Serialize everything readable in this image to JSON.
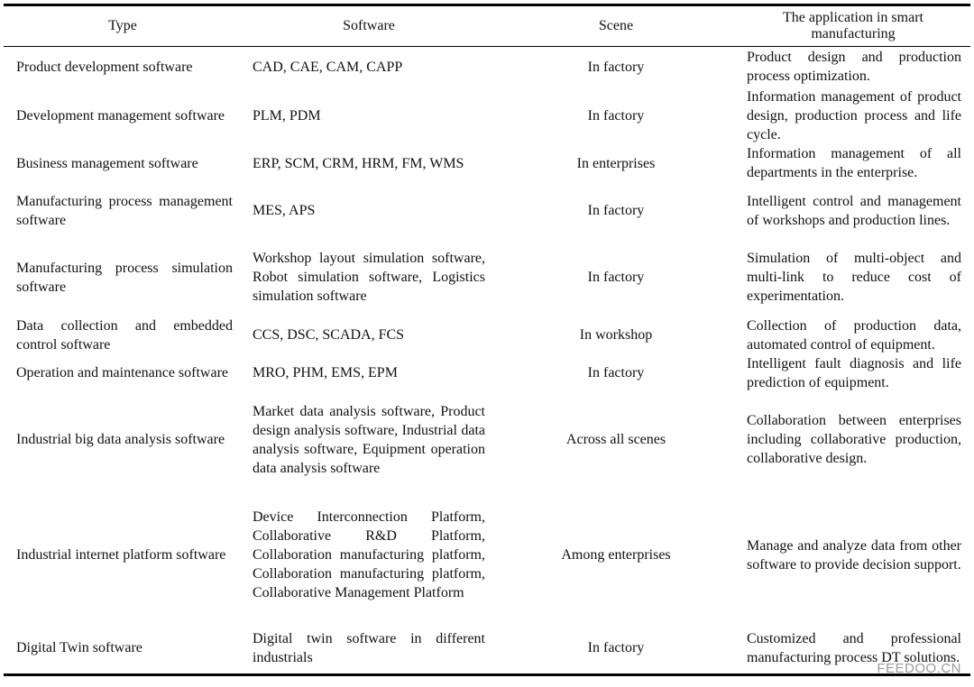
{
  "headers": [
    "Type",
    "Software",
    "Scene",
    "The application in smart manufacturing"
  ],
  "rows": [
    {
      "type": "Product development software",
      "software": "CAD, CAE, CAM, CAPP",
      "scene": "In factory",
      "application": "Product design and production process optimization."
    },
    {
      "type": "Development management software",
      "software": "PLM, PDM",
      "scene": "In factory",
      "application": "Information management of product design, production process and life cycle."
    },
    {
      "type": "Business management software",
      "software": "ERP, SCM, CRM, HRM, FM, WMS",
      "scene": "In enterprises",
      "application": "Information management of all departments in the enterprise."
    },
    {
      "type": "Manufacturing process management software",
      "software": "MES, APS",
      "scene": "In factory",
      "application": "Intelligent control and management of workshops and production lines."
    },
    {
      "type": "Manufacturing process simulation software",
      "software": "Workshop layout simulation software, Robot simulation software, Logistics simulation software",
      "scene": "In factory",
      "application": "Simulation of multi-object and multi-link to reduce cost of experimentation."
    },
    {
      "type": "Data collection and embedded control software",
      "software": "CCS, DSC, SCADA, FCS",
      "scene": "In workshop",
      "application": "Collection of production data, automated control of equipment."
    },
    {
      "type": "Operation and maintenance software",
      "software": "MRO, PHM, EMS, EPM",
      "scene": "In factory",
      "application": "Intelligent fault diagnosis and life prediction of equipment."
    },
    {
      "type": "Industrial big data analysis software",
      "software": "Market data analysis software, Product design analysis software, Industrial data analysis software, Equipment operation data analysis software",
      "scene": "Across all scenes",
      "application": "Collaboration between enterprises including collaborative production, collaborative design."
    },
    {
      "type": "Industrial internet platform software",
      "software": "Device Interconnection Platform, Collaborative R&D Platform, Collaboration manufacturing platform, Collaboration manufacturing platform, Collaborative Management Platform",
      "scene": "Among enterprises",
      "application": "Manage and analyze data from other software to provide decision support."
    },
    {
      "type": "Digital Twin software",
      "software": "Digital twin software in different industrials",
      "scene": "In factory",
      "application": "Customized and professional manufacturing process DT solutions."
    }
  ],
  "watermark": "FEEDOO.CN"
}
